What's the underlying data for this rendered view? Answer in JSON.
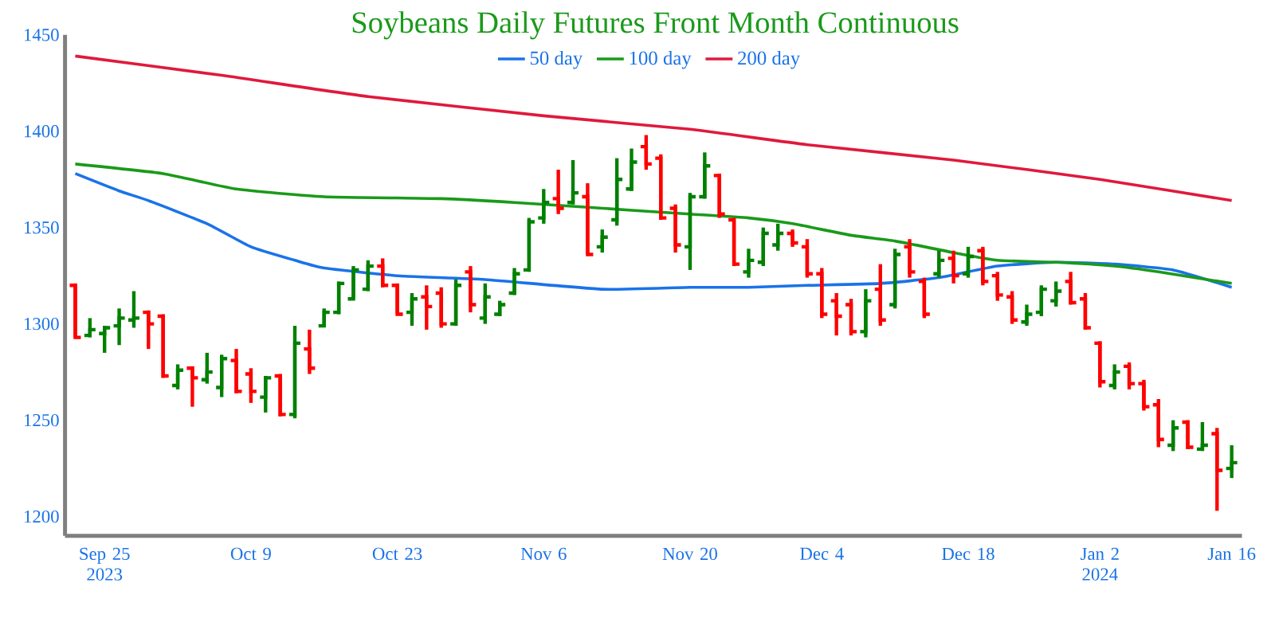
{
  "chart_data": {
    "type": "candlestick",
    "title": "Soybeans Daily Futures Front Month Continuous",
    "categories": [
      null,
      null,
      "Sep 25 2023",
      null,
      null,
      null,
      null,
      null,
      null,
      null,
      null,
      null,
      "Oct 9",
      null,
      null,
      null,
      null,
      null,
      null,
      null,
      null,
      null,
      "Oct 23",
      null,
      null,
      null,
      null,
      null,
      null,
      null,
      null,
      null,
      "Nov 6",
      null,
      null,
      null,
      null,
      null,
      null,
      null,
      null,
      null,
      "Nov 20",
      null,
      null,
      null,
      null,
      null,
      null,
      null,
      null,
      "Dec 4",
      null,
      null,
      null,
      null,
      null,
      null,
      null,
      null,
      null,
      "Dec 18",
      null,
      null,
      null,
      null,
      null,
      null,
      null,
      null,
      "Jan 2 2024",
      null,
      null,
      null,
      null,
      null,
      null,
      null,
      null,
      "Jan 16"
    ],
    "ohlc": [
      [
        1320,
        1321,
        1293,
        1293
      ],
      [
        1294,
        1303,
        1293,
        1297
      ],
      [
        1295,
        1299,
        1285,
        1298
      ],
      [
        1299,
        1308,
        1289,
        1303
      ],
      [
        1302,
        1317,
        1298,
        1303
      ],
      [
        1306,
        1307,
        1287,
        1300
      ],
      [
        1304,
        1305,
        1272,
        1273
      ],
      [
        1268,
        1279,
        1266,
        1276
      ],
      [
        1277,
        1278,
        1257,
        1272
      ],
      [
        1271,
        1285,
        1269,
        1275
      ],
      [
        1267,
        1284,
        1262,
        1282
      ],
      [
        1281,
        1287,
        1264,
        1265
      ],
      [
        1274,
        1277,
        1259,
        1265
      ],
      [
        1262,
        1273,
        1254,
        1272
      ],
      [
        1273,
        1274,
        1252,
        1253
      ],
      [
        1253,
        1299,
        1251,
        1290
      ],
      [
        1287,
        1297,
        1274,
        1277
      ],
      [
        1299,
        1308,
        1299,
        1306
      ],
      [
        1306,
        1322,
        1305,
        1321
      ],
      [
        1313,
        1330,
        1313,
        1328
      ],
      [
        1318,
        1333,
        1317,
        1330
      ],
      [
        1330,
        1334,
        1319,
        1320
      ],
      [
        1320,
        1321,
        1305,
        1305
      ],
      [
        1306,
        1316,
        1299,
        1313
      ],
      [
        1314,
        1320,
        1297,
        1309
      ],
      [
        1316,
        1319,
        1298,
        1300
      ],
      [
        1300,
        1323,
        1299,
        1320
      ],
      [
        1327,
        1330,
        1306,
        1310
      ],
      [
        1303,
        1321,
        1300,
        1314
      ],
      [
        1305,
        1312,
        1304,
        1310
      ],
      [
        1316,
        1329,
        1315,
        1326
      ],
      [
        1328,
        1355,
        1327,
        1353
      ],
      [
        1355,
        1370,
        1352,
        1363
      ],
      [
        1365,
        1380,
        1357,
        1360
      ],
      [
        1363,
        1385,
        1362,
        1368
      ],
      [
        1366,
        1373,
        1336,
        1336
      ],
      [
        1340,
        1349,
        1337,
        1345
      ],
      [
        1354,
        1386,
        1351,
        1375
      ],
      [
        1370,
        1391,
        1369,
        1384
      ],
      [
        1392,
        1398,
        1380,
        1383
      ],
      [
        1386,
        1388,
        1354,
        1355
      ],
      [
        1360,
        1362,
        1337,
        1341
      ],
      [
        1340,
        1368,
        1328,
        1366
      ],
      [
        1366,
        1389,
        1365,
        1382
      ],
      [
        1377,
        1378,
        1355,
        1357
      ],
      [
        1354,
        1355,
        1330,
        1331
      ],
      [
        1327,
        1339,
        1324,
        1333
      ],
      [
        1332,
        1350,
        1330,
        1347
      ],
      [
        1341,
        1352,
        1338,
        1347
      ],
      [
        1347,
        1349,
        1340,
        1342
      ],
      [
        1340,
        1344,
        1324,
        1326
      ],
      [
        1326,
        1329,
        1303,
        1305
      ],
      [
        1312,
        1316,
        1294,
        1304
      ],
      [
        1310,
        1313,
        1294,
        1296
      ],
      [
        1296,
        1318,
        1293,
        1312
      ],
      [
        1318,
        1331,
        1299,
        1302
      ],
      [
        1310,
        1339,
        1308,
        1336
      ],
      [
        1340,
        1344,
        1324,
        1327
      ],
      [
        1322,
        1324,
        1303,
        1305
      ],
      [
        1326,
        1338,
        1324,
        1333
      ],
      [
        1334,
        1338,
        1321,
        1325
      ],
      [
        1326,
        1340,
        1324,
        1335
      ],
      [
        1338,
        1340,
        1320,
        1322
      ],
      [
        1325,
        1327,
        1312,
        1315
      ],
      [
        1314,
        1317,
        1300,
        1302
      ],
      [
        1301,
        1310,
        1299,
        1305
      ],
      [
        1306,
        1320,
        1304,
        1318
      ],
      [
        1312,
        1322,
        1309,
        1317
      ],
      [
        1322,
        1327,
        1310,
        1311
      ],
      [
        1313,
        1316,
        1297,
        1298
      ],
      [
        1290,
        1291,
        1267,
        1270
      ],
      [
        1268,
        1279,
        1266,
        1275
      ],
      [
        1278,
        1280,
        1266,
        1269
      ],
      [
        1269,
        1271,
        1255,
        1257
      ],
      [
        1258,
        1261,
        1236,
        1240
      ],
      [
        1237,
        1250,
        1234,
        1246
      ],
      [
        1249,
        1250,
        1235,
        1236
      ],
      [
        1235,
        1249,
        1234,
        1237
      ],
      [
        1243,
        1246,
        1203,
        1224
      ],
      [
        1225,
        1237,
        1220,
        1228
      ]
    ],
    "colors": [
      "#ff0000",
      "#008000",
      "#008000",
      "#008000",
      "#008000",
      "#ff0000",
      "#ff0000",
      "#008000",
      "#ff0000",
      "#008000",
      "#008000",
      "#ff0000",
      "#ff0000",
      "#008000",
      "#ff0000",
      "#008000",
      "#ff0000",
      "#008000",
      "#008000",
      "#008000",
      "#008000",
      "#ff0000",
      "#ff0000",
      "#008000",
      "#ff0000",
      "#ff0000",
      "#008000",
      "#ff0000",
      "#008000",
      "#008000",
      "#008000",
      "#008000",
      "#008000",
      "#ff0000",
      "#008000",
      "#ff0000",
      "#008000",
      "#008000",
      "#008000",
      "#ff0000",
      "#ff0000",
      "#ff0000",
      "#008000",
      "#008000",
      "#ff0000",
      "#ff0000",
      "#008000",
      "#008000",
      "#008000",
      "#ff0000",
      "#ff0000",
      "#ff0000",
      "#ff0000",
      "#ff0000",
      "#008000",
      "#ff0000",
      "#008000",
      "#ff0000",
      "#ff0000",
      "#008000",
      "#ff0000",
      "#008000",
      "#ff0000",
      "#ff0000",
      "#ff0000",
      "#008000",
      "#008000",
      "#008000",
      "#ff0000",
      "#ff0000",
      "#ff0000",
      "#008000",
      "#ff0000",
      "#ff0000",
      "#ff0000",
      "#008000",
      "#ff0000",
      "#008000",
      "#ff0000",
      "#008000"
    ],
    "series": [
      {
        "name": "50 day",
        "type": "line",
        "color": "#1a73e8",
        "values": [
          1378,
          null,
          null,
          1369,
          null,
          1364,
          null,
          null,
          null,
          1352,
          null,
          null,
          1340,
          null,
          null,
          1333,
          null,
          1329,
          null,
          null,
          null,
          null,
          1325,
          null,
          null,
          null,
          null,
          null,
          1323,
          null,
          null,
          null,
          null,
          null,
          null,
          null,
          1318,
          null,
          null,
          null,
          null,
          null,
          1319,
          null,
          null,
          null,
          1319,
          null,
          null,
          null,
          1320,
          null,
          null,
          null,
          null,
          1321,
          null,
          null,
          null,
          1324,
          null,
          null,
          null,
          1330,
          null,
          null,
          null,
          1332,
          null,
          null,
          null,
          1331,
          null,
          null,
          null,
          1328,
          null,
          null,
          null,
          1319
        ]
      },
      {
        "name": "100 day",
        "type": "line",
        "color": "#1a9a1a",
        "values": [
          1383,
          null,
          null,
          null,
          null,
          null,
          1378,
          null,
          null,
          null,
          null,
          1370,
          null,
          null,
          null,
          null,
          null,
          1366,
          null,
          null,
          null,
          null,
          null,
          null,
          null,
          1365,
          null,
          null,
          null,
          null,
          1363,
          null,
          null,
          null,
          null,
          null,
          null,
          null,
          1359,
          null,
          null,
          null,
          1357,
          null,
          null,
          null,
          1355,
          null,
          null,
          1352,
          null,
          null,
          null,
          1346,
          null,
          null,
          1343,
          null,
          null,
          null,
          1337,
          null,
          null,
          1333,
          null,
          null,
          null,
          1332,
          null,
          null,
          null,
          1330,
          null,
          null,
          1327,
          null,
          null,
          null,
          null,
          1321
        ]
      },
      {
        "name": "200 day",
        "type": "line",
        "color": "#e0193c",
        "values": [
          1439,
          null,
          null,
          null,
          null,
          null,
          null,
          null,
          null,
          null,
          1429,
          null,
          null,
          null,
          null,
          null,
          null,
          null,
          null,
          null,
          1418,
          null,
          null,
          null,
          null,
          null,
          null,
          null,
          null,
          null,
          null,
          null,
          1408,
          null,
          null,
          null,
          null,
          null,
          null,
          null,
          null,
          null,
          1401,
          null,
          null,
          null,
          null,
          null,
          null,
          null,
          1393,
          null,
          null,
          null,
          null,
          null,
          null,
          null,
          null,
          null,
          1385,
          null,
          null,
          null,
          null,
          null,
          null,
          null,
          null,
          null,
          1375,
          null,
          null,
          null,
          null,
          null,
          null,
          null,
          null,
          1364
        ]
      }
    ],
    "ylim": [
      1190,
      1450
    ],
    "yticks": [
      1200,
      1250,
      1300,
      1350,
      1400,
      1450
    ],
    "grid": false,
    "legend": "top"
  }
}
